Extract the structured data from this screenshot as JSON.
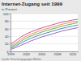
{
  "chart_data": {
    "type": "line",
    "title": "Internet-Zugang seit 1999",
    "subtitle": "in Prozent",
    "note": "Quelle: Forschungsgruppe Wahlen",
    "x": [
      1999,
      2000,
      2001,
      2002,
      2003,
      2004,
      2005,
      2006,
      2007,
      2008,
      2009,
      2010,
      2011,
      2012
    ],
    "series": [
      {
        "color": "#d63b8c",
        "values": [
          20,
          28,
          38,
          46,
          52,
          57,
          62,
          66,
          70,
          74,
          78,
          80,
          83,
          85
        ]
      },
      {
        "color": "#e8892a",
        "values": [
          15,
          22,
          32,
          40,
          46,
          51,
          56,
          60,
          64,
          68,
          72,
          75,
          78,
          80
        ]
      },
      {
        "color": "#4fa64a",
        "values": [
          12,
          18,
          27,
          35,
          41,
          46,
          51,
          55,
          59,
          63,
          67,
          70,
          73,
          76
        ]
      },
      {
        "color": "#3b78c2",
        "values": [
          8,
          14,
          22,
          29,
          35,
          40,
          45,
          49,
          53,
          57,
          61,
          64,
          67,
          70
        ]
      },
      {
        "color": "#8a5aa8",
        "values": [
          5,
          10,
          16,
          22,
          28,
          33,
          38,
          42,
          46,
          50,
          54,
          57,
          60,
          63
        ]
      }
    ],
    "xlim": [
      1999,
      2012
    ],
    "xticks": [
      1999,
      2002,
      2005,
      2008,
      2011
    ],
    "ylim": [
      0,
      100
    ],
    "yticks": [
      0,
      20,
      40,
      60,
      80,
      100
    ],
    "grid": true
  }
}
